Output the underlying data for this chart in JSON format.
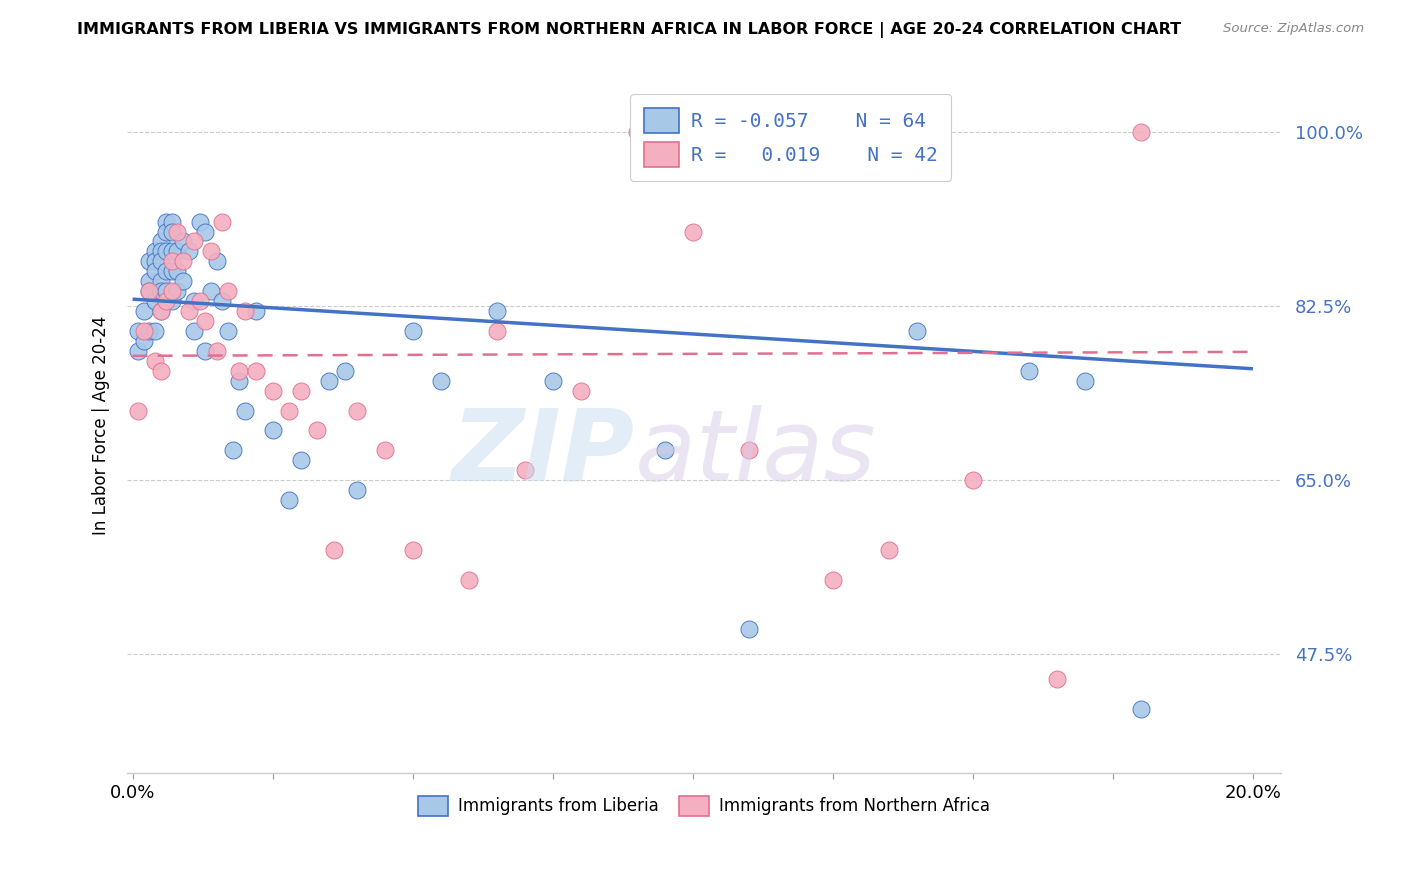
{
  "title": "IMMIGRANTS FROM LIBERIA VS IMMIGRANTS FROM NORTHERN AFRICA IN LABOR FORCE | AGE 20-24 CORRELATION CHART",
  "source": "Source: ZipAtlas.com",
  "ylabel": "In Labor Force | Age 20-24",
  "ylim": [
    0.355,
    1.055
  ],
  "xlim": [
    -0.001,
    0.205
  ],
  "color_liberia": "#a8c8e8",
  "color_n_africa": "#f4b0c0",
  "trend_color_liberia": "#4472c4",
  "trend_color_n_africa": "#d04070",
  "trend_color_n_africa_light": "#e07090",
  "liberia_x": [
    0.001,
    0.001,
    0.002,
    0.002,
    0.003,
    0.003,
    0.003,
    0.003,
    0.004,
    0.004,
    0.004,
    0.004,
    0.004,
    0.005,
    0.005,
    0.005,
    0.005,
    0.005,
    0.005,
    0.006,
    0.006,
    0.006,
    0.006,
    0.006,
    0.007,
    0.007,
    0.007,
    0.007,
    0.007,
    0.008,
    0.008,
    0.008,
    0.009,
    0.009,
    0.01,
    0.011,
    0.011,
    0.012,
    0.013,
    0.013,
    0.014,
    0.015,
    0.016,
    0.017,
    0.018,
    0.019,
    0.02,
    0.022,
    0.025,
    0.028,
    0.03,
    0.035,
    0.038,
    0.04,
    0.05,
    0.055,
    0.065,
    0.075,
    0.095,
    0.11,
    0.14,
    0.16,
    0.17,
    0.18
  ],
  "liberia_y": [
    0.8,
    0.78,
    0.82,
    0.79,
    0.87,
    0.85,
    0.84,
    0.8,
    0.88,
    0.87,
    0.86,
    0.83,
    0.8,
    0.89,
    0.88,
    0.87,
    0.85,
    0.84,
    0.82,
    0.91,
    0.9,
    0.88,
    0.86,
    0.84,
    0.91,
    0.9,
    0.88,
    0.86,
    0.83,
    0.88,
    0.86,
    0.84,
    0.89,
    0.85,
    0.88,
    0.83,
    0.8,
    0.91,
    0.9,
    0.78,
    0.84,
    0.87,
    0.83,
    0.8,
    0.68,
    0.75,
    0.72,
    0.82,
    0.7,
    0.63,
    0.67,
    0.75,
    0.76,
    0.64,
    0.8,
    0.75,
    0.82,
    0.75,
    0.68,
    0.5,
    0.8,
    0.76,
    0.75,
    0.42
  ],
  "n_africa_x": [
    0.001,
    0.002,
    0.003,
    0.004,
    0.005,
    0.005,
    0.006,
    0.007,
    0.007,
    0.008,
    0.009,
    0.01,
    0.011,
    0.012,
    0.013,
    0.014,
    0.015,
    0.016,
    0.017,
    0.019,
    0.02,
    0.022,
    0.025,
    0.028,
    0.03,
    0.033,
    0.036,
    0.04,
    0.045,
    0.05,
    0.06,
    0.065,
    0.07,
    0.08,
    0.09,
    0.1,
    0.11,
    0.125,
    0.135,
    0.15,
    0.165,
    0.18
  ],
  "n_africa_y": [
    0.72,
    0.8,
    0.84,
    0.77,
    0.82,
    0.76,
    0.83,
    0.87,
    0.84,
    0.9,
    0.87,
    0.82,
    0.89,
    0.83,
    0.81,
    0.88,
    0.78,
    0.91,
    0.84,
    0.76,
    0.82,
    0.76,
    0.74,
    0.72,
    0.74,
    0.7,
    0.58,
    0.72,
    0.68,
    0.58,
    0.55,
    0.8,
    0.66,
    0.74,
    1.0,
    0.9,
    0.68,
    0.55,
    0.58,
    0.65,
    0.45,
    1.0
  ],
  "trend_liberia_x0": 0.0,
  "trend_liberia_y0": 0.832,
  "trend_liberia_x1": 0.2,
  "trend_liberia_y1": 0.762,
  "trend_n_africa_x0": 0.0,
  "trend_n_africa_y0": 0.775,
  "trend_n_africa_x1": 0.2,
  "trend_n_africa_y1": 0.779
}
